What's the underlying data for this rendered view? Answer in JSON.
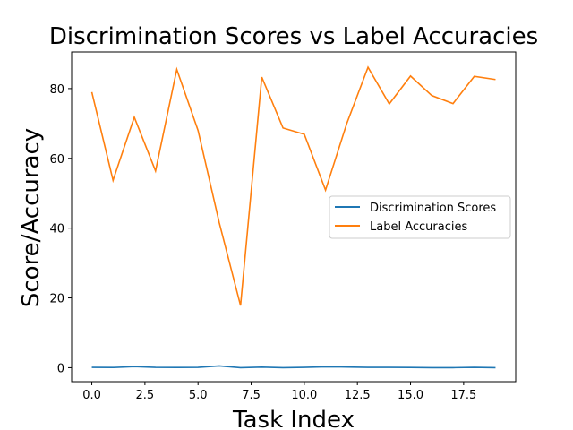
{
  "chart_data": {
    "type": "line",
    "title": "Discrimination Scores vs Label Accuracies",
    "xlabel": "Task Index",
    "ylabel": "Score/Accuracy",
    "xlim": [
      -0.95,
      19.95
    ],
    "ylim": [
      -4.0,
      90.5
    ],
    "xticks": [
      0.0,
      2.5,
      5.0,
      7.5,
      10.0,
      12.5,
      15.0,
      17.5
    ],
    "xtick_labels": [
      "0.0",
      "2.5",
      "5.0",
      "7.5",
      "10.0",
      "12.5",
      "15.0",
      "17.5"
    ],
    "yticks": [
      0,
      20,
      40,
      60,
      80
    ],
    "ytick_labels": [
      "0",
      "20",
      "40",
      "60",
      "80"
    ],
    "grid": false,
    "legend_position": "center-right",
    "x": [
      0,
      1,
      2,
      3,
      4,
      5,
      6,
      7,
      8,
      9,
      10,
      11,
      12,
      13,
      14,
      15,
      16,
      17,
      18,
      19
    ],
    "series": [
      {
        "name": "Discrimination Scores",
        "color": "#1f77b4",
        "values": [
          0.1,
          0.05,
          0.3,
          0.1,
          0.05,
          0.1,
          0.5,
          0.0,
          0.15,
          0.0,
          0.1,
          0.25,
          0.2,
          0.1,
          0.1,
          0.05,
          0.0,
          0.0,
          0.1,
          0.0
        ]
      },
      {
        "name": "Label Accuracies",
        "color": "#ff7f0e",
        "values": [
          79.0,
          53.7,
          71.8,
          56.4,
          85.5,
          68.0,
          41.5,
          17.8,
          83.3,
          68.7,
          66.9,
          50.9,
          70.0,
          86.1,
          75.6,
          83.6,
          78.0,
          75.7,
          83.5,
          82.6
        ]
      }
    ]
  }
}
